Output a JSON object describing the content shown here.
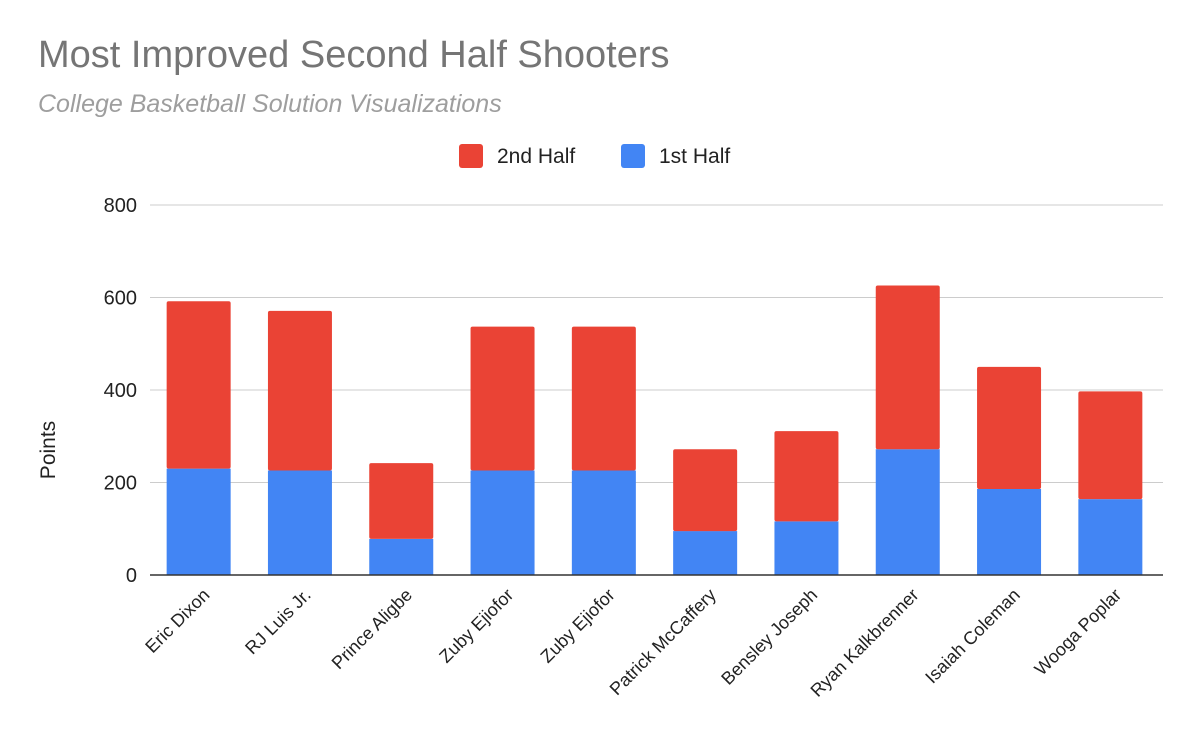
{
  "chart_data": {
    "type": "bar",
    "stacked": true,
    "title": "Most Improved Second Half Shooters",
    "subtitle": "College Basketball Solution Visualizations",
    "ylabel": "Points",
    "xlabel": "",
    "ylim": [
      0,
      800
    ],
    "yticks": [
      0,
      200,
      400,
      600,
      800
    ],
    "grid": true,
    "legend_position": "top",
    "categories": [
      "Eric Dixon",
      "RJ Luis Jr.",
      "Prince Aligbe",
      "Zuby Ejiofor",
      "Zuby Ejiofor",
      "Patrick McCaffery",
      "Bensley Joseph",
      "Ryan Kalkbrenner",
      "Isaiah Coleman",
      "Wooga Poplar"
    ],
    "series": [
      {
        "name": "1st Half",
        "color": "#4285f4",
        "values": [
          230,
          226,
          78,
          226,
          226,
          95,
          116,
          272,
          186,
          164
        ]
      },
      {
        "name": "2nd Half",
        "color": "#ea4335",
        "values": [
          362,
          345,
          164,
          311,
          311,
          177,
          195,
          354,
          264,
          233
        ]
      }
    ],
    "legend": [
      {
        "name": "2nd Half",
        "color": "#ea4335"
      },
      {
        "name": "1st Half",
        "color": "#4285f4"
      }
    ]
  }
}
